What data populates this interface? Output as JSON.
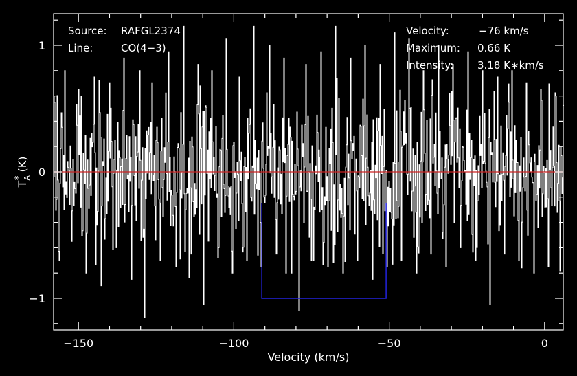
{
  "info": {
    "source_label": "Source:",
    "source_value": "RAFGL2374",
    "line_label": "Line:",
    "line_value": "CO(4−3)",
    "velocity_label": "Velocity:",
    "velocity_value": "−76 km/s",
    "maximum_label": "Maximum:",
    "maximum_value": "0.66 K",
    "intensity_label": "Intensity:",
    "intensity_value": "3.18 K∗km/s"
  },
  "colors": {
    "background": "#000000",
    "spectrum": "#ffffff",
    "zero_line": "#cc2222",
    "window": "#2222dd",
    "axes": "#ffffff"
  },
  "chart_data": {
    "type": "line",
    "style": "histogram-step",
    "xlabel": "Velocity (km/s)",
    "ylabel_main": "T",
    "ylabel_sub": "A",
    "ylabel_sup": "*",
    "ylabel_unit": " (K)",
    "xlim": [
      -158,
      6
    ],
    "ylim": [
      -1.25,
      1.25
    ],
    "xticks": [
      -150,
      -100,
      -50,
      0
    ],
    "xtick_labels": [
      "−150",
      "−100",
      "−50",
      "0"
    ],
    "yticks": [
      -1,
      0,
      1
    ],
    "ytick_labels": [
      "−1",
      "0",
      "1"
    ],
    "zero_line": 0,
    "line_window": {
      "x_start": -91,
      "x_end": -51,
      "y_top": -0.25,
      "y_bottom": -1.0
    },
    "series": [
      {
        "description_key": "spectrum",
        "x_start": -158,
        "x_end": 6,
        "noise_sigma": 0.3,
        "samples": [
          [
            -157.9,
            0.6
          ],
          [
            -156.2,
            -0.7
          ],
          [
            -154.5,
            0.8
          ],
          [
            -152.3,
            -0.55
          ],
          [
            -150.1,
            0.65
          ],
          [
            -147.6,
            -0.8
          ],
          [
            -145.0,
            0.75
          ],
          [
            -142.8,
            -0.9
          ],
          [
            -140.2,
            0.7
          ],
          [
            -137.9,
            -0.6
          ],
          [
            -135.5,
            0.9
          ],
          [
            -133.0,
            -0.85
          ],
          [
            -130.4,
            0.8
          ],
          [
            -128.9,
            -1.15
          ],
          [
            -126.3,
            0.7
          ],
          [
            -123.8,
            -0.7
          ],
          [
            -121.0,
            0.95
          ],
          [
            -118.6,
            -0.75
          ],
          [
            -116.2,
            1.15
          ],
          [
            -113.9,
            -0.65
          ],
          [
            -111.5,
            0.85
          ],
          [
            -109.8,
            -1.05
          ],
          [
            -107.2,
            0.8
          ],
          [
            -104.9,
            -0.6
          ],
          [
            -102.5,
            1.05
          ],
          [
            -100.6,
            -0.8
          ],
          [
            -98.3,
            0.75
          ],
          [
            -95.9,
            -0.7
          ],
          [
            -93.6,
            1.15
          ],
          [
            -91.2,
            -0.75
          ],
          [
            -88.7,
            1.0
          ],
          [
            -86.4,
            -0.65
          ],
          [
            -83.9,
            0.9
          ],
          [
            -81.5,
            -0.8
          ],
          [
            -79.2,
            -1.1
          ],
          [
            -76.8,
            0.85
          ],
          [
            -74.5,
            -0.7
          ],
          [
            -72.1,
            0.95
          ],
          [
            -69.8,
            -0.75
          ],
          [
            -67.4,
            1.15
          ],
          [
            -64.9,
            -0.8
          ],
          [
            -62.6,
            0.9
          ],
          [
            -60.2,
            -0.7
          ],
          [
            -57.8,
            1.0
          ],
          [
            -55.5,
            -0.85
          ],
          [
            -53.1,
            0.85
          ],
          [
            -50.8,
            -0.75
          ],
          [
            -48.4,
            1.1
          ],
          [
            -46.1,
            -0.7
          ],
          [
            -43.7,
            1.05
          ],
          [
            -41.4,
            -0.8
          ],
          [
            -39.0,
            0.8
          ],
          [
            -36.6,
            -0.65
          ],
          [
            -34.3,
            1.0
          ],
          [
            -31.9,
            -0.75
          ],
          [
            -29.5,
            0.85
          ],
          [
            -27.2,
            -0.6
          ],
          [
            -24.8,
            0.95
          ],
          [
            -22.4,
            -0.7
          ],
          [
            -20.1,
            0.8
          ],
          [
            -17.7,
            -1.05
          ],
          [
            -15.3,
            0.75
          ],
          [
            -13.0,
            -0.65
          ],
          [
            -10.6,
            0.8
          ],
          [
            -8.3,
            -0.7
          ],
          [
            -5.9,
            0.7
          ],
          [
            -3.5,
            -0.8
          ],
          [
            -1.2,
            0.65
          ],
          [
            1.2,
            -0.75
          ],
          [
            3.5,
            0.6
          ]
        ]
      }
    ]
  }
}
